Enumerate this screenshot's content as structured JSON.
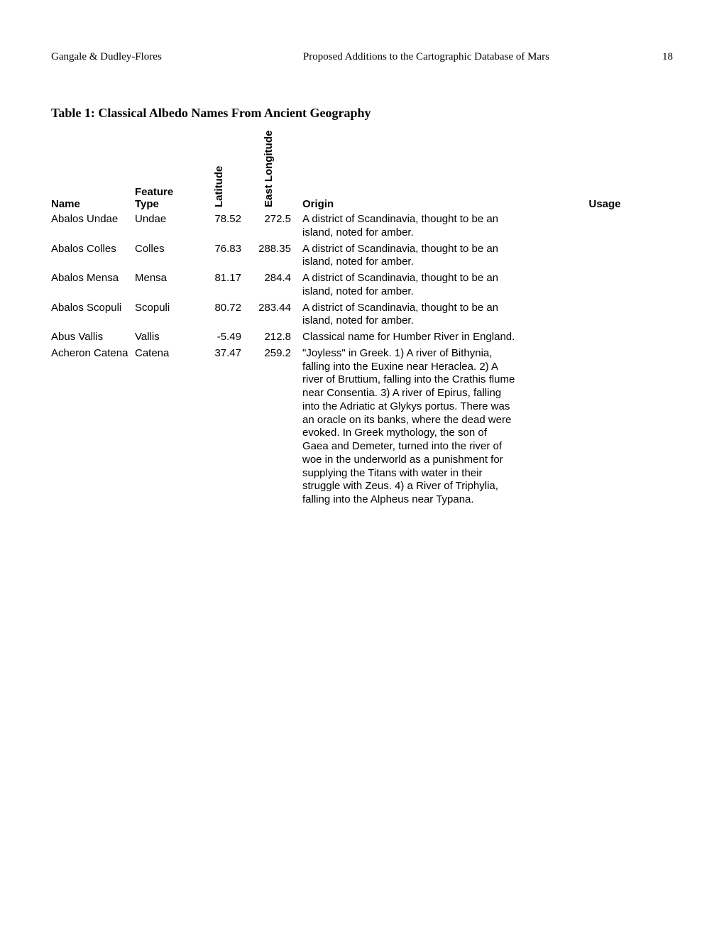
{
  "header": {
    "left": "Gangale & Dudley-Flores",
    "center": "Proposed Additions to the Cartographic Database of Mars",
    "page_number": "18"
  },
  "table": {
    "title": "Table 1:  Classical Albedo Names From Ancient Geography",
    "columns": {
      "name": "Name",
      "feature_type": "Feature Type",
      "latitude": "Latitude",
      "east_longitude": "East Longitude",
      "origin": "Origin",
      "usage": "Usage"
    },
    "rows": [
      {
        "name": "Abalos Undae",
        "type": "Undae",
        "lat": "78.52",
        "lon": "272.5",
        "origin": "A district of Scandinavia, thought to be an island, noted for amber.",
        "usage": ""
      },
      {
        "name": "Abalos Colles",
        "type": "Colles",
        "lat": "76.83",
        "lon": "288.35",
        "origin": "A district of Scandinavia, thought to be an island, noted for amber.",
        "usage": ""
      },
      {
        "name": "Abalos Mensa",
        "type": "Mensa",
        "lat": "81.17",
        "lon": "284.4",
        "origin": "A district of Scandinavia, thought to be an island, noted for amber.",
        "usage": ""
      },
      {
        "name": "Abalos Scopuli",
        "type": "Scopuli",
        "lat": "80.72",
        "lon": "283.44",
        "origin": "A district of Scandinavia, thought to be an island, noted for amber.",
        "usage": ""
      },
      {
        "name": "Abus Vallis",
        "type": "Vallis",
        "lat": "-5.49",
        "lon": "212.8",
        "origin": "Classical name for Humber River in England.",
        "usage": ""
      },
      {
        "name": "Acheron Catena",
        "type": "Catena",
        "lat": "37.47",
        "lon": "259.2",
        "origin": "\"Joyless\" in Greek. 1) A river of Bithynia, falling into the Euxine near Heraclea. 2) A river of Bruttium, falling into the Crathis flume near Consentia. 3) A river of Epirus, falling into the Adriatic at Glykys portus. There was an oracle on its banks, where the dead were evoked. In Greek mythology, the son of Gaea and Demeter, turned into the river of woe in the underworld as a punishment for supplying the Titans with water in their struggle with Zeus. 4) a River of Triphylia, falling into the Alpheus near Typana.",
        "usage": ""
      }
    ]
  }
}
